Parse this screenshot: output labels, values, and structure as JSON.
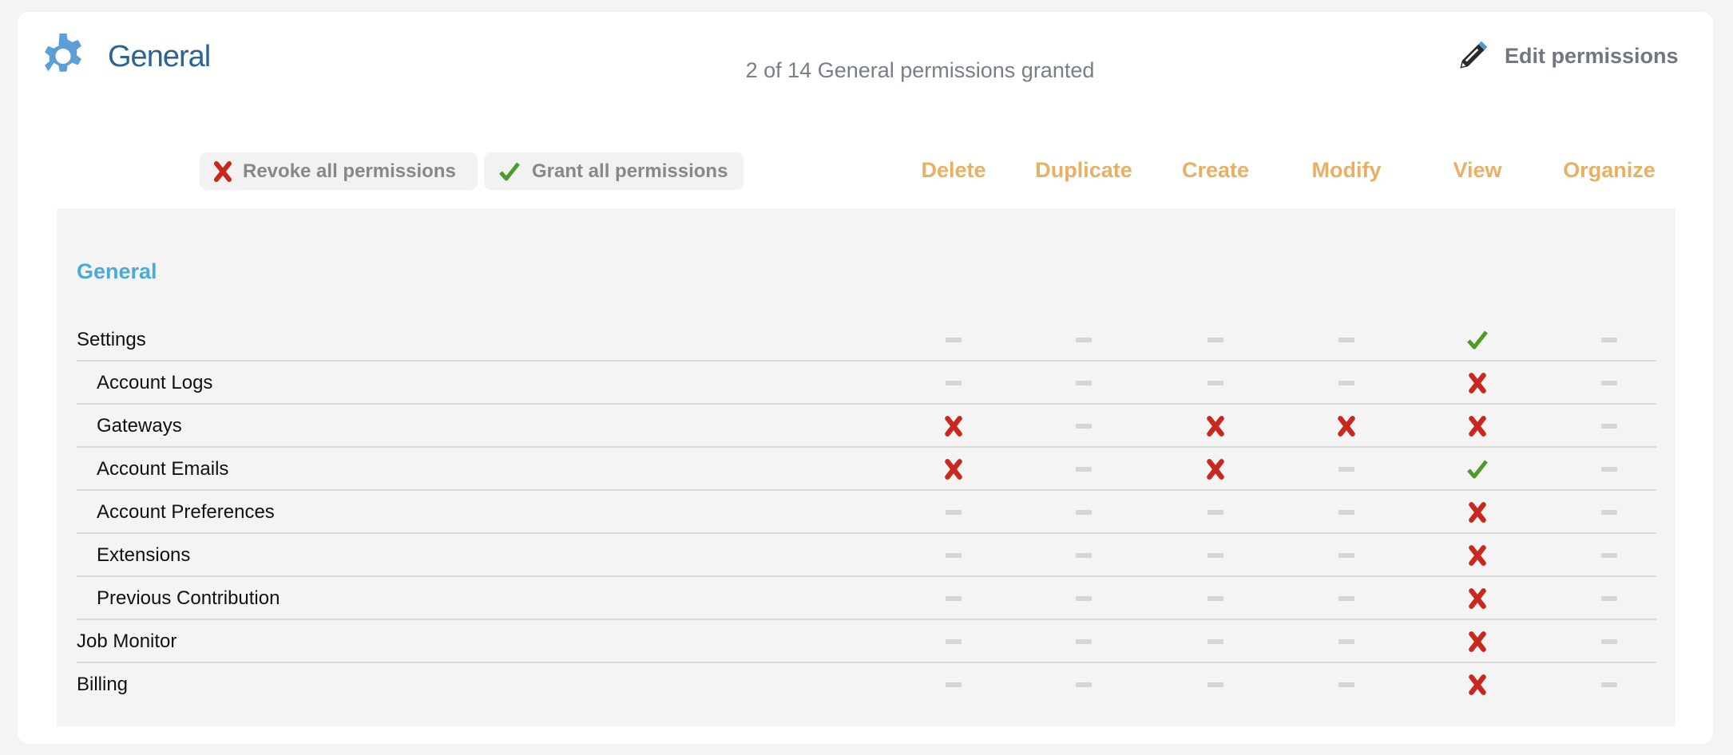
{
  "header": {
    "icon": "gear-icon",
    "title": "General",
    "summary": "2 of 14 General permissions granted",
    "edit_icon": "pencil-icon",
    "edit_label": "Edit permissions"
  },
  "actions": {
    "revoke_label": "Revoke all permissions",
    "grant_label": "Grant all permissions"
  },
  "columns": [
    "Delete",
    "Duplicate",
    "Create",
    "Modify",
    "View",
    "Organize"
  ],
  "colors": {
    "title": "#2a6496",
    "column_header": "#e8b062",
    "section": "#4aabd6",
    "denied": "#c9281e",
    "granted": "#4e9a2a",
    "none": "#d6d6d6"
  },
  "section": {
    "title": "General",
    "rows": [
      {
        "label": "Settings",
        "indent": false,
        "cells": [
          "none",
          "none",
          "none",
          "none",
          "granted",
          "none"
        ]
      },
      {
        "label": "Account Logs",
        "indent": true,
        "cells": [
          "none",
          "none",
          "none",
          "none",
          "denied",
          "none"
        ]
      },
      {
        "label": "Gateways",
        "indent": true,
        "cells": [
          "denied",
          "none",
          "denied",
          "denied",
          "denied",
          "none"
        ]
      },
      {
        "label": "Account Emails",
        "indent": true,
        "cells": [
          "denied",
          "none",
          "denied",
          "none",
          "granted",
          "none"
        ]
      },
      {
        "label": "Account Preferences",
        "indent": true,
        "cells": [
          "none",
          "none",
          "none",
          "none",
          "denied",
          "none"
        ]
      },
      {
        "label": "Extensions",
        "indent": true,
        "cells": [
          "none",
          "none",
          "none",
          "none",
          "denied",
          "none"
        ]
      },
      {
        "label": "Previous Contribution",
        "indent": true,
        "cells": [
          "none",
          "none",
          "none",
          "none",
          "denied",
          "none"
        ]
      },
      {
        "label": "Job Monitor",
        "indent": false,
        "cells": [
          "none",
          "none",
          "none",
          "none",
          "denied",
          "none"
        ]
      },
      {
        "label": "Billing",
        "indent": false,
        "cells": [
          "none",
          "none",
          "none",
          "none",
          "denied",
          "none"
        ]
      }
    ]
  }
}
